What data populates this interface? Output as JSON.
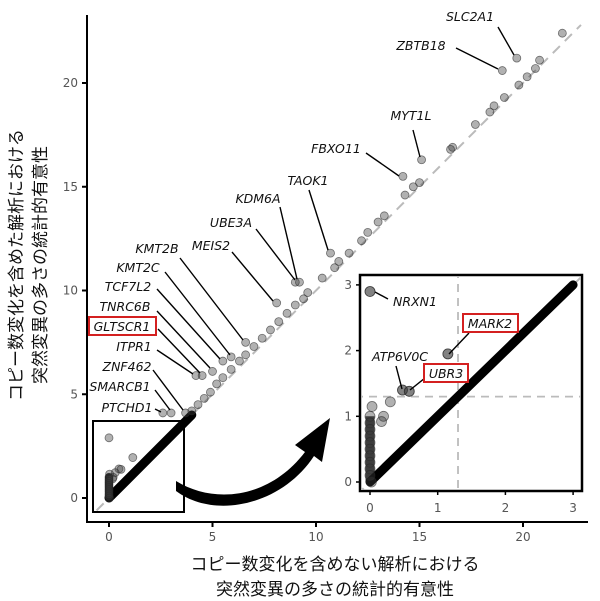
{
  "chart_data": {
    "type": "scatter",
    "xlabel": [
      "コピー数変化を含めない解析における",
      "突然変異の多さの統計的有意性"
    ],
    "ylabel": [
      "コピー数変化を含めた解析における",
      "突然変異の多さの統計的有意性"
    ],
    "xlim": [
      -1,
      23
    ],
    "ylim": [
      -1,
      23
    ],
    "x_ticks": [
      "0",
      "5",
      "10",
      "15",
      "20"
    ],
    "y_ticks": [
      "0",
      "5",
      "10",
      "15",
      "20"
    ],
    "grid": false,
    "reference_line": "y = x (dashed gray)",
    "point_color": "#000000",
    "highlight_color": "#d42020",
    "labeled_genes": [
      {
        "name": "SLC2A1",
        "x": 19.7,
        "y": 21.2,
        "highlight": false
      },
      {
        "name": "ZBTB18",
        "x": 19.0,
        "y": 20.6,
        "highlight": false
      },
      {
        "name": "MYT1L",
        "x": 15.1,
        "y": 16.3,
        "highlight": false
      },
      {
        "name": "FBXO11",
        "x": 14.2,
        "y": 15.5,
        "highlight": false
      },
      {
        "name": "TAOK1",
        "x": 10.7,
        "y": 11.8,
        "highlight": false
      },
      {
        "name": "KDM6A",
        "x": 9.2,
        "y": 10.4,
        "highlight": false
      },
      {
        "name": "UBE3A",
        "x": 9.0,
        "y": 10.4,
        "highlight": false
      },
      {
        "name": "MEIS2",
        "x": 8.1,
        "y": 9.4,
        "highlight": false
      },
      {
        "name": "KMT2B",
        "x": 6.6,
        "y": 7.5,
        "highlight": false
      },
      {
        "name": "KMT2C",
        "x": 5.9,
        "y": 6.8,
        "highlight": false
      },
      {
        "name": "TCF7L2",
        "x": 5.5,
        "y": 6.6,
        "highlight": false
      },
      {
        "name": "TNRC6B",
        "x": 5.0,
        "y": 6.1,
        "highlight": false
      },
      {
        "name": "GLTSCR1",
        "x": 4.5,
        "y": 5.9,
        "highlight": true
      },
      {
        "name": "ITPR1",
        "x": 4.2,
        "y": 5.9,
        "highlight": false
      },
      {
        "name": "ZNF462",
        "x": 3.7,
        "y": 4.1,
        "highlight": false
      },
      {
        "name": "SMARCB1",
        "x": 3.0,
        "y": 4.1,
        "highlight": false
      },
      {
        "name": "PTCHD1",
        "x": 2.6,
        "y": 4.1,
        "highlight": false
      }
    ],
    "other_points": [
      [
        21.9,
        22.4
      ],
      [
        20.8,
        21.1
      ],
      [
        20.6,
        20.7
      ],
      [
        20.2,
        20.3
      ],
      [
        19.8,
        19.9
      ],
      [
        19.1,
        19.3
      ],
      [
        18.6,
        18.9
      ],
      [
        18.4,
        18.6
      ],
      [
        17.7,
        18.0
      ],
      [
        16.6,
        16.9
      ],
      [
        16.5,
        16.8
      ],
      [
        15.0,
        15.2
      ],
      [
        14.7,
        15.0
      ],
      [
        14.3,
        14.6
      ],
      [
        13.3,
        13.6
      ],
      [
        13.0,
        13.3
      ],
      [
        12.5,
        12.8
      ],
      [
        12.2,
        12.4
      ],
      [
        11.6,
        11.8
      ],
      [
        11.1,
        11.4
      ],
      [
        10.9,
        11.1
      ],
      [
        10.3,
        10.6
      ],
      [
        9.6,
        9.9
      ],
      [
        9.4,
        9.6
      ],
      [
        9.0,
        9.3
      ],
      [
        8.6,
        8.9
      ],
      [
        8.2,
        8.5
      ],
      [
        7.8,
        8.1
      ],
      [
        7.4,
        7.7
      ],
      [
        7.0,
        7.3
      ],
      [
        6.6,
        6.9
      ],
      [
        6.3,
        6.6
      ],
      [
        5.9,
        6.2
      ],
      [
        5.5,
        5.8
      ],
      [
        5.2,
        5.5
      ],
      [
        4.9,
        5.1
      ],
      [
        4.6,
        4.8
      ],
      [
        4.3,
        4.5
      ],
      [
        4.0,
        4.2
      ],
      [
        0.0,
        2.9
      ],
      [
        1.15,
        1.95
      ],
      [
        0.48,
        1.4
      ],
      [
        0.58,
        1.38
      ],
      [
        0.3,
        1.22
      ],
      [
        0.03,
        1.15
      ],
      [
        0.2,
        1.0
      ],
      [
        0.17,
        0.92
      ],
      [
        0.0,
        1.0
      ],
      [
        0.0,
        0.9
      ],
      [
        0.0,
        0.8
      ],
      [
        0.0,
        0.7
      ],
      [
        0.0,
        0.6
      ],
      [
        0.0,
        0.5
      ],
      [
        0.0,
        0.4
      ],
      [
        0.0,
        0.3
      ],
      [
        0.0,
        0.2
      ],
      [
        0.0,
        0.1
      ],
      [
        0.02,
        0.0
      ]
    ],
    "dense_band": {
      "from": 0,
      "to": 4.0
    },
    "inset": {
      "xlim": [
        -0.1,
        3.1
      ],
      "ylim": [
        -0.1,
        3.1
      ],
      "x_ticks": [
        "0",
        "1",
        "2",
        "3"
      ],
      "y_ticks": [
        "0",
        "1",
        "2",
        "3"
      ],
      "threshold_lines": {
        "x": 1.3,
        "y": 1.3
      },
      "labeled_genes": [
        {
          "name": "NRXN1",
          "x": 0.0,
          "y": 2.9,
          "highlight": false
        },
        {
          "name": "MARK2",
          "x": 1.15,
          "y": 1.95,
          "highlight": true
        },
        {
          "name": "ATP6V0C",
          "x": 0.48,
          "y": 1.4,
          "highlight": false
        },
        {
          "name": "UBR3",
          "x": 0.58,
          "y": 1.38,
          "highlight": true
        }
      ]
    }
  }
}
